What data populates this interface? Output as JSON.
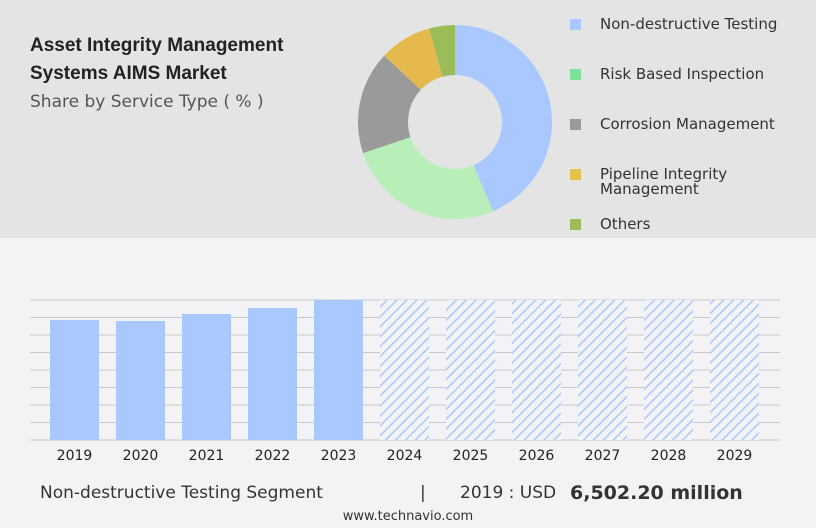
{
  "title": "Asset Integrity Management Systems AIMS Market",
  "subtitle": "Share by Service Type ( % )",
  "legend": [
    {
      "label": "Non-destructive Testing",
      "color": "#a8c8ff"
    },
    {
      "label": "Risk Based Inspection",
      "color": "#7ee39a"
    },
    {
      "label": "Corrosion Management",
      "color": "#9a9a9a"
    },
    {
      "label": "Pipeline Integrity Management",
      "color": "#e6c04e"
    },
    {
      "label": "Others",
      "color": "#9cbb59"
    }
  ],
  "chart_data": [
    {
      "type": "pie",
      "donut": true,
      "categories": [
        "Non-destructive Testing",
        "Risk Based Inspection",
        "Corrosion Management",
        "Pipeline Integrity Management",
        "Others"
      ],
      "values": [
        43.6,
        26.2,
        17.2,
        8.7,
        4.3
      ],
      "colors": [
        "#a8c8ff",
        "#b8eeb8",
        "#9a9a9a",
        "#e6b94e",
        "#9cbb59"
      ]
    },
    {
      "type": "bar",
      "categories": [
        "2019",
        "2020",
        "2021",
        "2022",
        "2023",
        "2024",
        "2025",
        "2026",
        "2027",
        "2028",
        "2029"
      ],
      "values": [
        6502.2,
        6448,
        6827,
        7152,
        7586,
        null,
        null,
        null,
        null,
        null,
        null
      ],
      "forecast": [
        "2024",
        "2025",
        "2026",
        "2027",
        "2028",
        "2029"
      ],
      "bar_color": "#a8c8ff",
      "grid": true,
      "ylim": [
        0,
        7586
      ]
    }
  ],
  "footer": {
    "segment": "Non-destructive Testing Segment",
    "separator": "|",
    "year_label": "2019 : USD",
    "value": "6,502.20 million"
  },
  "site": "www.technavio.com"
}
